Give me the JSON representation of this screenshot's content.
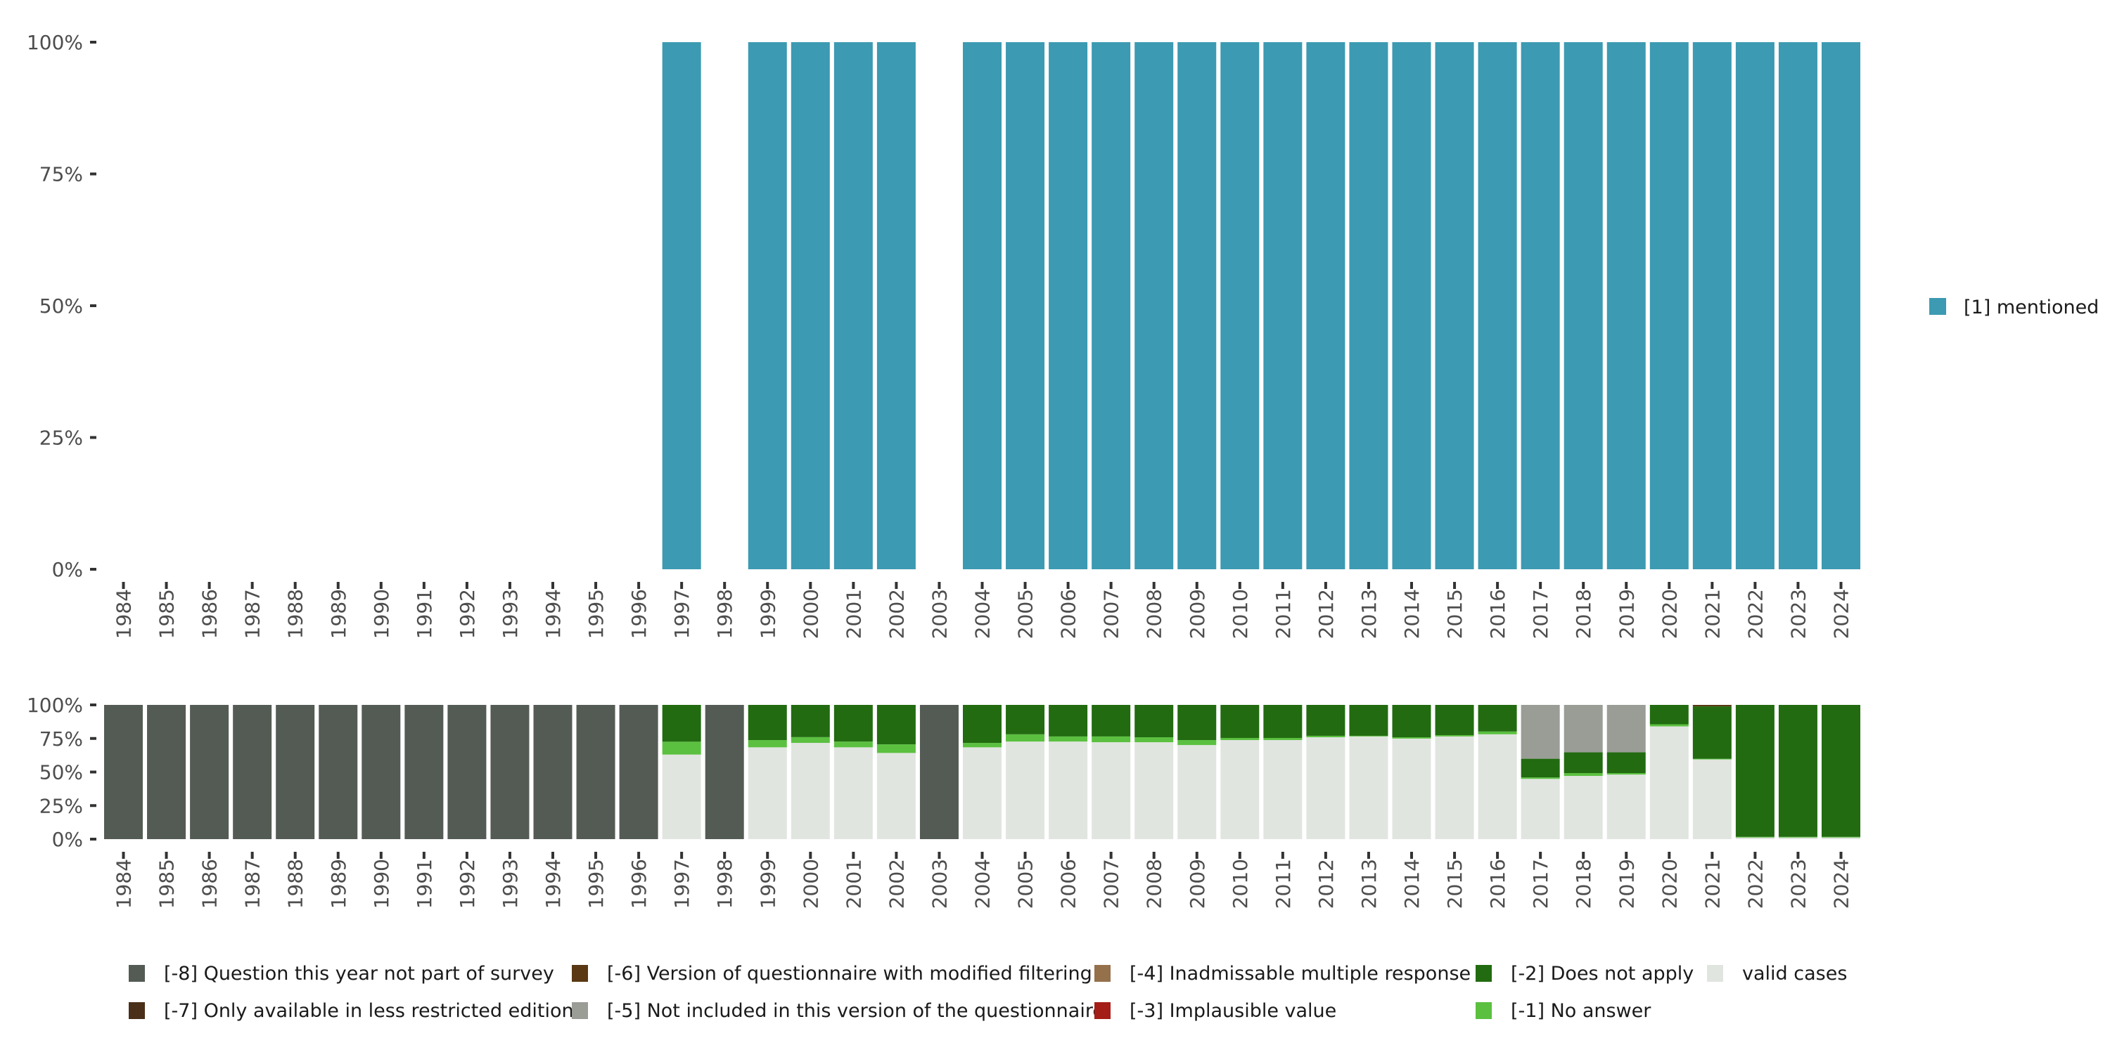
{
  "chart_data": [
    {
      "type": "bar",
      "title": "",
      "xlabel": "",
      "ylabel": "",
      "ylim": [
        0,
        100
      ],
      "yticks": [
        "0%",
        "25%",
        "50%",
        "75%",
        "100%"
      ],
      "categories": [
        "1984",
        "1985",
        "1986",
        "1987",
        "1988",
        "1989",
        "1990",
        "1991",
        "1992",
        "1993",
        "1994",
        "1995",
        "1996",
        "1997",
        "1998",
        "1999",
        "2000",
        "2001",
        "2002",
        "2003",
        "2004",
        "2005",
        "2006",
        "2007",
        "2008",
        "2009",
        "2010",
        "2011",
        "2012",
        "2013",
        "2014",
        "2015",
        "2016",
        "2017",
        "2018",
        "2019",
        "2020",
        "2021",
        "2022",
        "2023",
        "2024"
      ],
      "series": [
        {
          "name": "[1] mentioned",
          "color": "#3c9ab2",
          "values": [
            0,
            0,
            0,
            0,
            0,
            0,
            0,
            0,
            0,
            0,
            0,
            0,
            0,
            100,
            0,
            100,
            100,
            100,
            100,
            0,
            100,
            100,
            100,
            100,
            100,
            100,
            100,
            100,
            100,
            100,
            100,
            100,
            100,
            100,
            100,
            100,
            100,
            100,
            100,
            100,
            100
          ]
        }
      ],
      "legend": "right"
    },
    {
      "type": "bar",
      "stacked": true,
      "ylim": [
        0,
        100
      ],
      "yticks": [
        "0%",
        "25%",
        "50%",
        "75%",
        "100%"
      ],
      "categories": [
        "1984",
        "1985",
        "1986",
        "1987",
        "1988",
        "1989",
        "1990",
        "1991",
        "1992",
        "1993",
        "1994",
        "1995",
        "1996",
        "1997",
        "1998",
        "1999",
        "2000",
        "2001",
        "2002",
        "2003",
        "2004",
        "2005",
        "2006",
        "2007",
        "2008",
        "2009",
        "2010",
        "2011",
        "2012",
        "2013",
        "2014",
        "2015",
        "2016",
        "2017",
        "2018",
        "2019",
        "2020",
        "2021",
        "2022",
        "2023",
        "2024"
      ],
      "series": [
        {
          "name": "valid cases",
          "color": "#e1e5e0",
          "values": [
            0,
            0,
            0,
            0,
            0,
            0,
            0,
            0,
            0,
            0,
            0,
            0,
            0,
            63,
            0,
            68.4,
            71.7,
            68.4,
            64.2,
            0,
            68.4,
            72.7,
            72.7,
            72.2,
            72.2,
            70.1,
            73.8,
            73.8,
            75.9,
            76.5,
            74.9,
            76.5,
            78.1,
            44.9,
            47.1,
            48.1,
            84.0,
            59.4,
            1.2,
            1.2,
            1.2
          ]
        },
        {
          "name": "[-1] No answer",
          "color": "#5bc040",
          "values": [
            0,
            0,
            0,
            0,
            0,
            0,
            0,
            0,
            0,
            0,
            0,
            0,
            0,
            9.6,
            0,
            5.4,
            4.3,
            4.3,
            6.4,
            0,
            3.3,
            5.4,
            3.8,
            4.3,
            3.7,
            3.7,
            1.6,
            1.6,
            1.1,
            0.5,
            1.0,
            1.0,
            2.1,
            1.1,
            2.1,
            1.1,
            1.6,
            0.5,
            0.5,
            0.5,
            0.5
          ]
        },
        {
          "name": "[-2] Does not apply",
          "color": "#226b10",
          "values": [
            0,
            0,
            0,
            0,
            0,
            0,
            0,
            0,
            0,
            0,
            0,
            0,
            0,
            27.4,
            0,
            26.2,
            24.0,
            27.3,
            29.4,
            0,
            28.3,
            21.9,
            23.5,
            23.5,
            24.1,
            26.2,
            24.6,
            24.6,
            23.0,
            23.0,
            24.1,
            22.5,
            19.8,
            13.9,
            15.5,
            15.5,
            14.4,
            39.0,
            98.3,
            98.3,
            98.3
          ]
        },
        {
          "name": "[-3] Implausible value",
          "color": "#a51d17",
          "values": [
            0,
            0,
            0,
            0,
            0,
            0,
            0,
            0,
            0,
            0,
            0,
            0,
            0,
            0,
            0,
            0,
            0,
            0,
            0,
            0,
            0,
            0,
            0,
            0,
            0,
            0,
            0,
            0,
            0,
            0,
            0,
            0,
            0,
            0,
            0,
            0,
            0,
            0,
            0,
            0,
            0
          ]
        },
        {
          "name": "[-4] Inadmissable multiple response",
          "color": "#94704b",
          "values": [
            0,
            0,
            0,
            0,
            0,
            0,
            0,
            0,
            0,
            0,
            0,
            0,
            0,
            0,
            0,
            0,
            0,
            0,
            0,
            0,
            0,
            0,
            0,
            0,
            0,
            0,
            0,
            0,
            0,
            0,
            0,
            0,
            0,
            0,
            0,
            0,
            0,
            0,
            0,
            0,
            0
          ]
        },
        {
          "name": "[-5] Not included in this version of the questionnaire",
          "color": "#9a9d96",
          "values": [
            0,
            0,
            0,
            0,
            0,
            0,
            0,
            0,
            0,
            0,
            0,
            0,
            0,
            0,
            0,
            0,
            0,
            0,
            0,
            0,
            0,
            0,
            0,
            0,
            0,
            0,
            0,
            0,
            0,
            0,
            0,
            0,
            0,
            40.1,
            35.3,
            35.3,
            0,
            0,
            0,
            0,
            0
          ]
        },
        {
          "name": "[-6] Version of questionnaire with modified filtering",
          "color": "#5a3814",
          "values": [
            0,
            0,
            0,
            0,
            0,
            0,
            0,
            0,
            0,
            0,
            0,
            0,
            0,
            0,
            0,
            0,
            0,
            0,
            0,
            0,
            0,
            0,
            0,
            0,
            0,
            0,
            0,
            0,
            0,
            0,
            0,
            0,
            0,
            0,
            0,
            0,
            0,
            1.1,
            0,
            0,
            0
          ]
        },
        {
          "name": "[-7] Only available in less restricted edition",
          "color": "#4a3019",
          "values": [
            0,
            0,
            0,
            0,
            0,
            0,
            0,
            0,
            0,
            0,
            0,
            0,
            0,
            0,
            0,
            0,
            0,
            0,
            0,
            0,
            0,
            0,
            0,
            0,
            0,
            0,
            0,
            0,
            0,
            0,
            0,
            0,
            0,
            0,
            0,
            0,
            0,
            0,
            0,
            0,
            0
          ]
        },
        {
          "name": "[-8] Question this year not part of survey",
          "color": "#545b54",
          "values": [
            100,
            100,
            100,
            100,
            100,
            100,
            100,
            100,
            100,
            100,
            100,
            100,
            100,
            0,
            100,
            0,
            0,
            0,
            0,
            100,
            0,
            0,
            0,
            0,
            0,
            0,
            0,
            0,
            0,
            0,
            0,
            0,
            0,
            0,
            0,
            0,
            0,
            0,
            0,
            0,
            0
          ]
        }
      ],
      "legend_order": [
        "[-8] Question this year not part of survey",
        "[-7] Only available in less restricted edition",
        "[-6] Version of questionnaire with modified filtering",
        "[-5] Not included in this version of the questionnaire",
        "[-4] Inadmissable multiple response",
        "[-3] Implausible value",
        "[-2] Does not apply",
        "[-1] No answer",
        "valid cases"
      ],
      "legend": "bottom"
    }
  ]
}
